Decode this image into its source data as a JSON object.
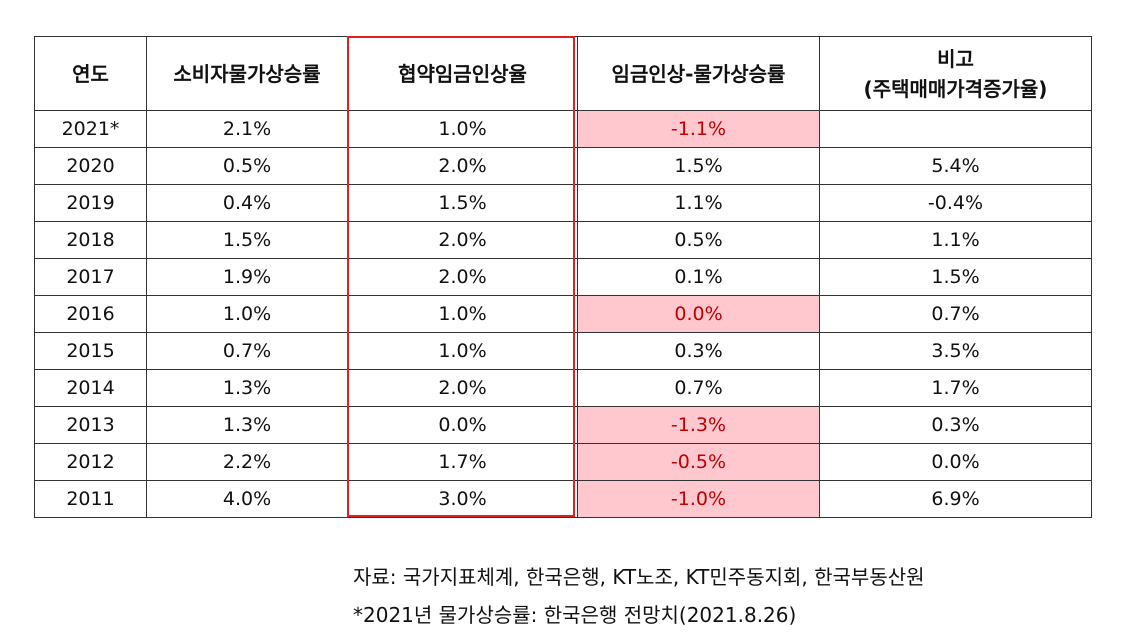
{
  "chart_data": {
    "type": "table",
    "columns": [
      "연도",
      "소비자물가상승률",
      "협약임금인상율",
      "임금인상-물가상승률",
      "비고",
      "(주택매매가격증가율)"
    ],
    "rows": [
      {
        "year": "2021*",
        "cpi": "2.1%",
        "wage": "1.0%",
        "diff": "-1.1%",
        "house": "",
        "neg": true
      },
      {
        "year": "2020",
        "cpi": "0.5%",
        "wage": "2.0%",
        "diff": "1.5%",
        "house": "5.4%",
        "neg": false
      },
      {
        "year": "2019",
        "cpi": "0.4%",
        "wage": "1.5%",
        "diff": "1.1%",
        "house": "-0.4%",
        "neg": false
      },
      {
        "year": "2018",
        "cpi": "1.5%",
        "wage": "2.0%",
        "diff": "0.5%",
        "house": "1.1%",
        "neg": false
      },
      {
        "year": "2017",
        "cpi": "1.9%",
        "wage": "2.0%",
        "diff": "0.1%",
        "house": "1.5%",
        "neg": false
      },
      {
        "year": "2016",
        "cpi": "1.0%",
        "wage": "1.0%",
        "diff": "0.0%",
        "house": "0.7%",
        "neg": true
      },
      {
        "year": "2015",
        "cpi": "0.7%",
        "wage": "1.0%",
        "diff": "0.3%",
        "house": "3.5%",
        "neg": false
      },
      {
        "year": "2014",
        "cpi": "1.3%",
        "wage": "2.0%",
        "diff": "0.7%",
        "house": "1.7%",
        "neg": false
      },
      {
        "year": "2013",
        "cpi": "1.3%",
        "wage": "0.0%",
        "diff": "-1.3%",
        "house": "0.3%",
        "neg": true
      },
      {
        "year": "2012",
        "cpi": "2.2%",
        "wage": "1.7%",
        "diff": "-0.5%",
        "house": "0.0%",
        "neg": true
      },
      {
        "year": "2011",
        "cpi": "4.0%",
        "wage": "3.0%",
        "diff": "-1.0%",
        "house": "6.9%",
        "neg": true
      }
    ],
    "highlight_color": "#e02020",
    "negative_fill": "#ffc7ce",
    "negative_text": "#c00000"
  },
  "notes": {
    "source": "자료: 국가지표체계, 한국은행, KT노조, KT민주동지회, 한국부동산원",
    "footnote": "*2021년 물가상승률: 한국은행 전망치(2021.8.26)"
  }
}
